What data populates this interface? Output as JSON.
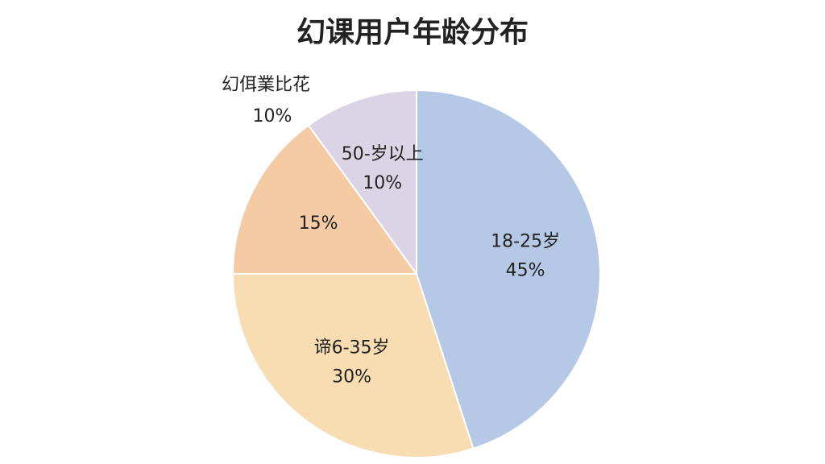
{
  "chart_data": {
    "type": "pie",
    "title": "幻课用户年龄分布",
    "categories": [
      "18-25岁",
      "谛6-35岁",
      null,
      "50-岁以上"
    ],
    "values": [
      45,
      30,
      15,
      10
    ],
    "value_labels": [
      "45%",
      "30%",
      "15%",
      "10%"
    ],
    "colors": [
      "#b5c9e7",
      "#f8ddb3",
      "#f5cba5",
      "#dad4e4"
    ],
    "label_colors": [
      "#222222",
      "#222222",
      "#a0703a",
      "#222222"
    ],
    "annotation": [
      "幻佴業比花",
      "10%"
    ]
  }
}
